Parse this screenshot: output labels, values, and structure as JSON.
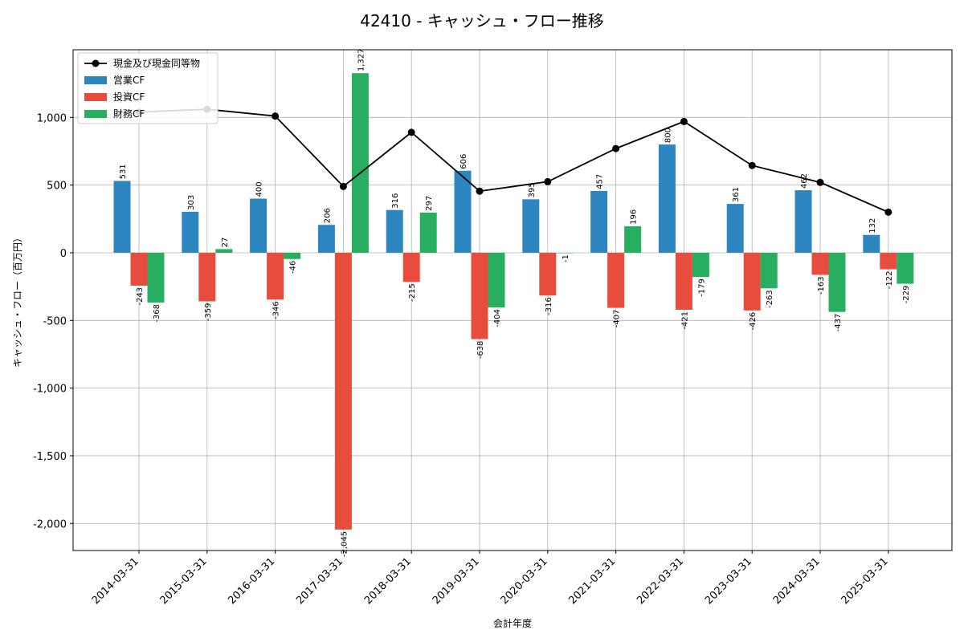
{
  "chart_data": {
    "type": "bar",
    "title": "42410 - キャッシュ・フロー推移",
    "xlabel": "会計年度",
    "ylabel": "キャッシュ・フロー（百万円）",
    "ylim": [
      -2200,
      1500
    ],
    "yticks": [
      -2000,
      -1500,
      -1000,
      -500,
      0,
      500,
      1000
    ],
    "ytick_labels": [
      "-2,000",
      "-1,500",
      "-1,000",
      "-500",
      "0",
      "500",
      "1,000"
    ],
    "grid": true,
    "legend_position": "top-left",
    "categories": [
      "2014-03-31",
      "2015-03-31",
      "2016-03-31",
      "2017-03-31",
      "2018-03-31",
      "2019-03-31",
      "2020-03-31",
      "2021-03-31",
      "2022-03-31",
      "2023-03-31",
      "2024-03-31",
      "2025-03-31"
    ],
    "series": [
      {
        "name": "営業CF",
        "color": "#2e86c1",
        "values": [
          531,
          303,
          400,
          206,
          316,
          606,
          395,
          457,
          800,
          361,
          462,
          132
        ],
        "labels": [
          "531",
          "303",
          "400",
          "206",
          "316",
          "606",
          "395",
          "457",
          "800",
          "361",
          "462",
          "132"
        ]
      },
      {
        "name": "投資CF",
        "color": "#e74c3c",
        "values": [
          -243,
          -359,
          -346,
          -2045,
          -215,
          -638,
          -316,
          -407,
          -421,
          -426,
          -163,
          -122
        ],
        "labels": [
          "-243",
          "-359",
          "-346",
          "-2,045",
          "-215",
          "-638",
          "-316",
          "-407",
          "-421",
          "-426",
          "-163",
          "-122"
        ]
      },
      {
        "name": "財務CF",
        "color": "#27ae60",
        "values": [
          -368,
          27,
          -46,
          1327,
          297,
          -404,
          -1,
          196,
          -179,
          -263,
          -437,
          -229
        ],
        "labels": [
          "-368",
          "27",
          "-46",
          "1,327",
          "297",
          "-404",
          "-1",
          "196",
          "-179",
          "-263",
          "-437",
          "-229"
        ]
      }
    ],
    "line": {
      "name": "現金及び現金同等物",
      "color": "#000000",
      "values": [
        1040,
        1060,
        1010,
        490,
        890,
        455,
        525,
        770,
        970,
        645,
        520,
        300
      ]
    }
  }
}
